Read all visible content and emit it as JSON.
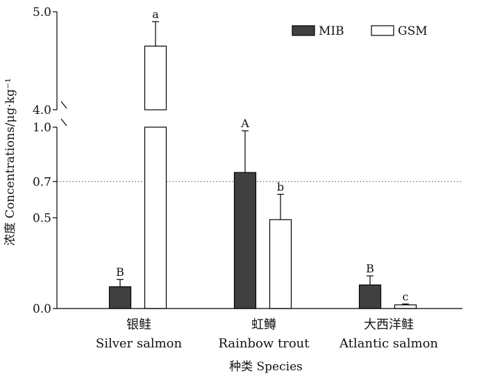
{
  "chart_data": {
    "type": "bar",
    "title": "",
    "xlabel": "种类 Species",
    "ylabel": "浓度 Concentrations/μg·kg⁻¹",
    "y_ticks": [
      {
        "value": 0.0,
        "label": "0.0"
      },
      {
        "value": 0.5,
        "label": "0.5"
      },
      {
        "value": 0.7,
        "label": "0.7"
      },
      {
        "value": 1.0,
        "label": "1.0"
      },
      {
        "value": 4.0,
        "label": "4.0"
      },
      {
        "value": 5.0,
        "label": "5.0"
      }
    ],
    "axis_break": {
      "from": 1.0,
      "to": 4.0
    },
    "ylim": [
      0,
      5.0
    ],
    "reference_line": {
      "value": 0.7,
      "style": "dotted"
    },
    "legend_position": "top-right",
    "categories": [
      {
        "zh": "银鲑",
        "en": "Silver salmon"
      },
      {
        "zh": "虹鳟",
        "en": "Rainbow trout"
      },
      {
        "zh": "大西洋鲑",
        "en": "Atlantic salmon"
      }
    ],
    "series": [
      {
        "name": "MIB",
        "color": "#404040",
        "values": [
          0.12,
          0.75,
          0.13
        ],
        "errors": [
          0.04,
          0.23,
          0.05
        ],
        "labels": [
          "B",
          "A",
          "B"
        ]
      },
      {
        "name": "GSM",
        "color": "#ffffff",
        "values": [
          4.65,
          0.49,
          0.02
        ],
        "errors": [
          0.25,
          0.14,
          0.005
        ],
        "labels": [
          "a",
          "b",
          "c"
        ]
      }
    ]
  }
}
